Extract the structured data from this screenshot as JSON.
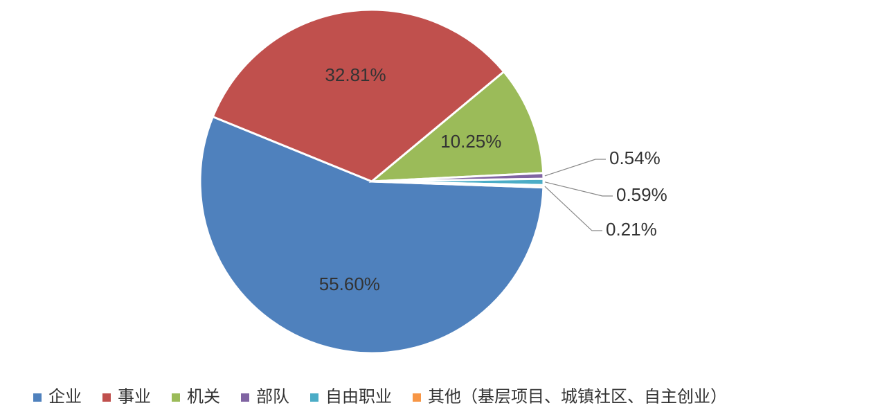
{
  "chart_data": {
    "type": "pie",
    "categories": [
      "企业",
      "事业",
      "机关",
      "部队",
      "自由职业",
      "其他（基层项目、城镇社区、自主创业）"
    ],
    "values": [
      55.6,
      32.81,
      10.25,
      0.54,
      0.59,
      0.21
    ],
    "value_labels": [
      "55.60%",
      "32.81%",
      "10.25%",
      "0.54%",
      "0.59%",
      "0.21%"
    ],
    "colors": [
      "#4f81bd",
      "#c0504d",
      "#9bbb59",
      "#8064a2",
      "#4bacc6",
      "#f79646"
    ],
    "legend": "bottom"
  }
}
